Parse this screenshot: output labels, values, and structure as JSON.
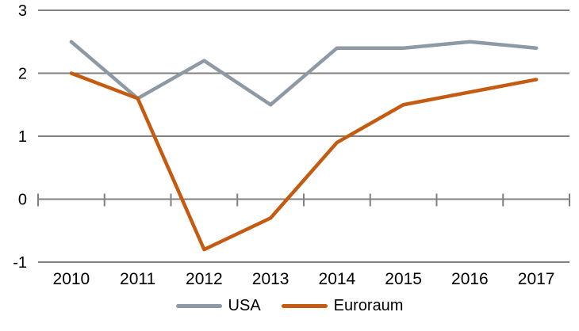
{
  "chart_data": {
    "type": "line",
    "categories": [
      "2010",
      "2011",
      "2012",
      "2013",
      "2014",
      "2015",
      "2016",
      "2017"
    ],
    "series": [
      {
        "name": "USA",
        "color": "#8d99a4",
        "values": [
          2.5,
          1.6,
          2.2,
          1.5,
          2.4,
          2.4,
          2.5,
          2.4
        ]
      },
      {
        "name": "Euroraum",
        "color": "#c55a11",
        "values": [
          2.0,
          1.6,
          -0.8,
          -0.3,
          0.9,
          1.5,
          1.7,
          1.9
        ]
      }
    ],
    "ylim": [
      -1,
      3
    ],
    "yticks": [
      3,
      2,
      1,
      0,
      -1
    ],
    "grid": true,
    "legend_position": "bottom"
  },
  "colors": {
    "gridline": "#808080",
    "axis": "#808080",
    "label_text": "#000000",
    "background": "#ffffff"
  }
}
